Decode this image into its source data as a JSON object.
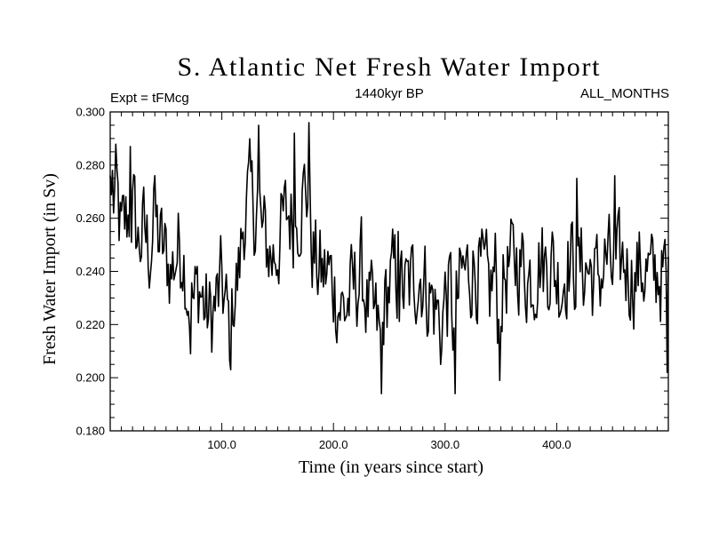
{
  "chart_data": {
    "type": "line",
    "title": "S. Atlantic Net Fresh Water Import",
    "subtitle_left": "Expt = tFMcg",
    "subtitle_center": "1440kyr BP",
    "subtitle_right": "ALL_MONTHS",
    "xlabel": "Time (in years since start)",
    "ylabel": "Fresh Water Import (in Sv)",
    "xlim": [
      0,
      500
    ],
    "ylim": [
      0.18,
      0.3
    ],
    "x_ticks": [
      100,
      200,
      300,
      400
    ],
    "x_tick_labels": [
      "100.0",
      "200.0",
      "300.0",
      "400.0"
    ],
    "y_ticks": [
      0.18,
      0.2,
      0.22,
      0.24,
      0.26,
      0.28,
      0.3
    ],
    "y_tick_labels": [
      "0.180",
      "0.200",
      "0.220",
      "0.240",
      "0.260",
      "0.280",
      "0.300"
    ],
    "series": [
      {
        "name": "S. Atlantic net fresh water import",
        "anchor_x": [
          0,
          5,
          10,
          15,
          20,
          25,
          30,
          35,
          40,
          45,
          50,
          55,
          60,
          65,
          70,
          75,
          80,
          85,
          90,
          95,
          100,
          105,
          108,
          110,
          115,
          120,
          125,
          130,
          133,
          135,
          140,
          145,
          150,
          155,
          160,
          165,
          170,
          175,
          178,
          180,
          185,
          190,
          195,
          200,
          205,
          210,
          215,
          220,
          225,
          230,
          235,
          240,
          243,
          245,
          250,
          255,
          260,
          265,
          270,
          275,
          280,
          285,
          290,
          295,
          300,
          305,
          309,
          310,
          315,
          320,
          325,
          330,
          335,
          340,
          345,
          349,
          350,
          355,
          360,
          365,
          370,
          375,
          380,
          385,
          390,
          395,
          400,
          405,
          410,
          415,
          420,
          425,
          430,
          435,
          440,
          445,
          450,
          455,
          460,
          465,
          470,
          475,
          480,
          485,
          490,
          495,
          500
        ],
        "anchor_y": [
          0.262,
          0.27,
          0.252,
          0.26,
          0.265,
          0.25,
          0.255,
          0.248,
          0.258,
          0.25,
          0.245,
          0.24,
          0.248,
          0.25,
          0.232,
          0.228,
          0.235,
          0.225,
          0.222,
          0.228,
          0.235,
          0.222,
          0.215,
          0.23,
          0.238,
          0.262,
          0.268,
          0.262,
          0.27,
          0.255,
          0.25,
          0.245,
          0.25,
          0.258,
          0.262,
          0.258,
          0.265,
          0.272,
          0.268,
          0.25,
          0.242,
          0.238,
          0.24,
          0.235,
          0.228,
          0.225,
          0.23,
          0.235,
          0.24,
          0.228,
          0.222,
          0.218,
          0.208,
          0.225,
          0.235,
          0.238,
          0.235,
          0.232,
          0.235,
          0.24,
          0.238,
          0.232,
          0.228,
          0.222,
          0.23,
          0.232,
          0.212,
          0.225,
          0.238,
          0.24,
          0.242,
          0.24,
          0.235,
          0.232,
          0.24,
          0.215,
          0.232,
          0.24,
          0.242,
          0.245,
          0.242,
          0.238,
          0.24,
          0.245,
          0.242,
          0.245,
          0.238,
          0.236,
          0.245,
          0.243,
          0.24,
          0.242,
          0.24,
          0.236,
          0.24,
          0.245,
          0.238,
          0.24,
          0.244,
          0.24,
          0.238,
          0.242,
          0.24,
          0.236,
          0.24,
          0.238,
          0.236
        ]
      }
    ]
  }
}
